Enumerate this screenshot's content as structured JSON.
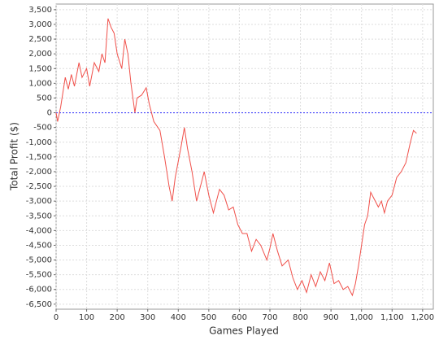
{
  "chart_data": {
    "type": "line",
    "x_label": "Games Played",
    "y_label": "Total Profit ($)",
    "x": [
      0,
      5,
      15,
      30,
      40,
      50,
      60,
      75,
      85,
      100,
      110,
      125,
      140,
      150,
      160,
      170,
      180,
      190,
      200,
      215,
      225,
      235,
      245,
      258,
      265,
      280,
      295,
      305,
      320,
      340,
      355,
      370,
      380,
      390,
      410,
      420,
      430,
      445,
      460,
      475,
      485,
      500,
      515,
      535,
      550,
      565,
      580,
      595,
      610,
      625,
      640,
      655,
      670,
      690,
      700,
      710,
      725,
      740,
      760,
      775,
      790,
      805,
      820,
      835,
      850,
      865,
      880,
      895,
      910,
      925,
      940,
      955,
      970,
      980,
      990,
      1000,
      1010,
      1020,
      1030,
      1045,
      1055,
      1065,
      1075,
      1085,
      1100,
      1115,
      1130,
      1145,
      1160,
      1170,
      1180
    ],
    "series": [
      {
        "name": "Total Profit",
        "color": "#f0504a",
        "values": [
          0,
          -300,
          200,
          1200,
          800,
          1300,
          900,
          1700,
          1200,
          1500,
          900,
          1700,
          1400,
          2000,
          1700,
          3200,
          2900,
          2700,
          2000,
          1500,
          2500,
          2000,
          1000,
          0,
          500,
          600,
          850,
          300,
          -300,
          -600,
          -1500,
          -2500,
          -3000,
          -2200,
          -1100,
          -500,
          -1200,
          -2000,
          -3000,
          -2400,
          -2000,
          -2800,
          -3400,
          -2600,
          -2800,
          -3300,
          -3200,
          -3800,
          -4100,
          -4100,
          -4700,
          -4300,
          -4500,
          -5000,
          -4600,
          -4100,
          -4700,
          -5200,
          -5000,
          -5600,
          -6000,
          -5700,
          -6100,
          -5500,
          -5900,
          -5400,
          -5700,
          -5100,
          -5800,
          -5700,
          -6000,
          -5900,
          -6200,
          -5800,
          -5200,
          -4500,
          -3800,
          -3500,
          -2700,
          -3000,
          -3200,
          -3000,
          -3400,
          -3000,
          -2800,
          -2200,
          -2000,
          -1700,
          -1000,
          -600,
          -700
        ]
      }
    ],
    "xlim": [
      0,
      1235
    ],
    "ylim": [
      -6670,
      3690
    ],
    "xticks": [
      0,
      100,
      200,
      300,
      400,
      500,
      600,
      700,
      800,
      900,
      {
        "value": 1000,
        "label": "1,000"
      },
      {
        "value": 1100,
        "label": "1,100"
      },
      {
        "value": 1200,
        "label": "1,200"
      }
    ],
    "yticks": [
      {
        "value": 3500,
        "label": "3,500"
      },
      {
        "value": 3000,
        "label": "3,000"
      },
      {
        "value": 2500,
        "label": "2,500"
      },
      {
        "value": 2000,
        "label": "2,000"
      },
      {
        "value": 1500,
        "label": "1,500"
      },
      {
        "value": 1000,
        "label": "1,000"
      },
      500,
      0,
      -500,
      {
        "value": -1000,
        "label": "-1,000"
      },
      {
        "value": -1500,
        "label": "-1,500"
      },
      {
        "value": -2000,
        "label": "-2,000"
      },
      {
        "value": -2500,
        "label": "-2,500"
      },
      {
        "value": -3000,
        "label": "-3,000"
      },
      {
        "value": -3500,
        "label": "-3,500"
      },
      {
        "value": -4000,
        "label": "-4,000"
      },
      {
        "value": -4500,
        "label": "-4,500"
      },
      {
        "value": -5000,
        "label": "-5,000"
      },
      {
        "value": -5500,
        "label": "-5,500"
      },
      {
        "value": -6000,
        "label": "-6,000"
      },
      {
        "value": -6500,
        "label": "-6,500"
      }
    ],
    "grid": true,
    "zero_line_color": "#3333ff"
  }
}
